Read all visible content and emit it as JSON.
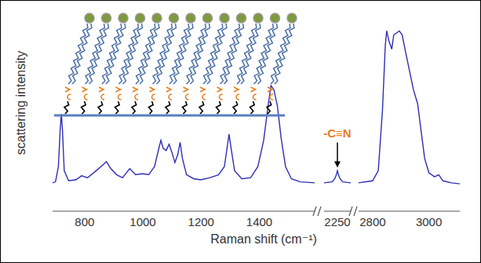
{
  "chart_data": [
    {
      "type": "line",
      "y_label": "scattering intensity",
      "color": "#2e2eb8",
      "x": [
        690,
        700,
        710,
        716,
        720,
        724,
        730,
        745,
        770,
        790,
        810,
        840,
        860,
        875,
        890,
        910,
        930,
        955,
        975,
        1000,
        1020,
        1040,
        1055,
        1062,
        1070,
        1080,
        1090,
        1100,
        1110,
        1120,
        1128,
        1136,
        1150,
        1175,
        1200,
        1230,
        1260,
        1280,
        1290,
        1296,
        1302,
        1315,
        1340,
        1370,
        1395,
        1415,
        1430,
        1440,
        1450,
        1462,
        1475,
        1490,
        1510,
        1540,
        1590
      ],
      "values": [
        14,
        14.5,
        22,
        40,
        48,
        40,
        20,
        15,
        15.5,
        17.5,
        16.5,
        20,
        22.5,
        24.5,
        21,
        18,
        16.5,
        21,
        18,
        18.5,
        18,
        22,
        31,
        35,
        31,
        30,
        33,
        29,
        24,
        28,
        34,
        26,
        18,
        16,
        15.5,
        16.5,
        18,
        22,
        32,
        38,
        32,
        20,
        16,
        16.5,
        22,
        35,
        52,
        62,
        60,
        52,
        36,
        22,
        16,
        14.5,
        14
      ],
      "xlim": [
        690,
        1590
      ],
      "xticks": [
        800,
        1000,
        1200,
        1400
      ],
      "ylim": [
        0,
        100
      ],
      "tick_labels": "x"
    },
    {
      "type": "line",
      "x_label": "Raman shift (cm⁻¹)",
      "annotation": {
        "text": "-C≡N",
        "x": 2250,
        "color": "#e87d1e"
      },
      "color": "#2e2eb8",
      "x": [
        2200,
        2230,
        2240,
        2246,
        2250,
        2254,
        2260,
        2270,
        2300
      ],
      "values": [
        14,
        14.5,
        16,
        18,
        20,
        18,
        16,
        14.5,
        14
      ],
      "xlim": [
        2200,
        2300
      ],
      "xticks": [
        2250
      ],
      "ylim": [
        0,
        100
      ],
      "tick_labels": "x"
    },
    {
      "type": "line",
      "color": "#2e2eb8",
      "x": [
        2750,
        2800,
        2820,
        2835,
        2845,
        2850,
        2858,
        2868,
        2875,
        2885,
        2895,
        2905,
        2915,
        2930,
        2945,
        2960,
        2972,
        2985,
        3000,
        3020,
        3035,
        3050,
        3080,
        3110
      ],
      "values": [
        14,
        15,
        20,
        50,
        82,
        89,
        84,
        80,
        87,
        88,
        89,
        87,
        80,
        70,
        60,
        53,
        40,
        26,
        19,
        17,
        18,
        15,
        14,
        13.5
      ],
      "xlim": [
        2750,
        3110
      ],
      "xticks": [
        2800,
        3000
      ],
      "ylim": [
        0,
        100
      ],
      "tick_labels": "x"
    }
  ]
}
